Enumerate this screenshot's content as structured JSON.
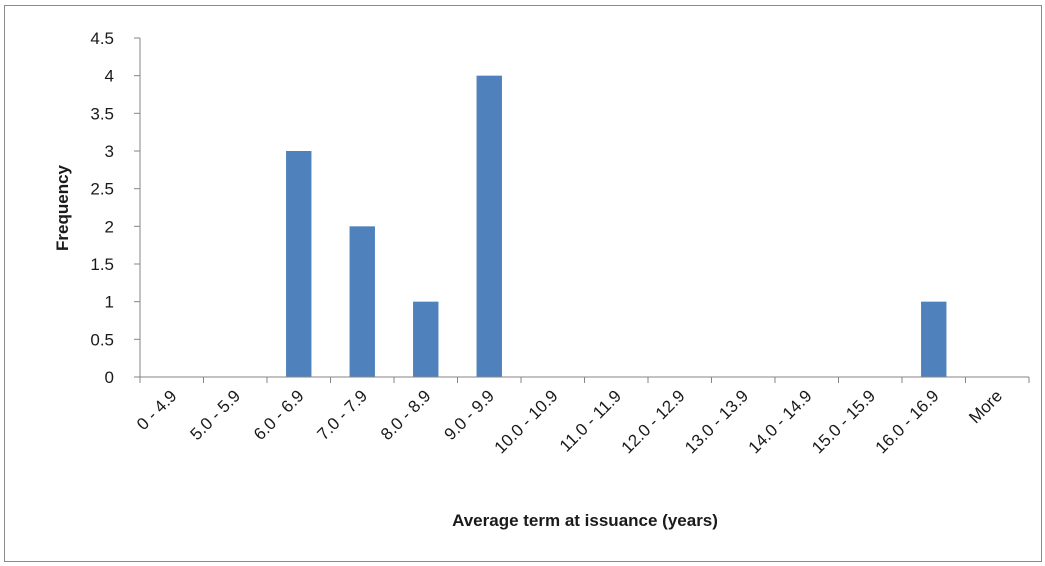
{
  "chart_data": {
    "type": "bar",
    "title": "",
    "xlabel": "Average term at issuance (years)",
    "ylabel": "Frequency",
    "categories": [
      "0 - 4.9",
      "5.0 - 5.9",
      "6.0 - 6.9",
      "7.0 - 7.9",
      "8.0 - 8.9",
      "9.0 - 9.9",
      "10.0 - 10.9",
      "11.0 - 11.9",
      "12.0 - 12.9",
      "13.0 - 13.9",
      "14.0 - 14.9",
      "15.0 - 15.9",
      "16.0 - 16.9",
      "More"
    ],
    "values": [
      0,
      0,
      3,
      2,
      1,
      4,
      0,
      0,
      0,
      0,
      0,
      0,
      1,
      0
    ],
    "ylim": [
      0,
      4.5
    ],
    "yticks": [
      "0",
      "0.5",
      "1",
      "1.5",
      "2",
      "2.5",
      "3",
      "3.5",
      "4",
      "4.5"
    ],
    "grid": false,
    "legend": "none",
    "bar_color": "#4f81bd"
  }
}
